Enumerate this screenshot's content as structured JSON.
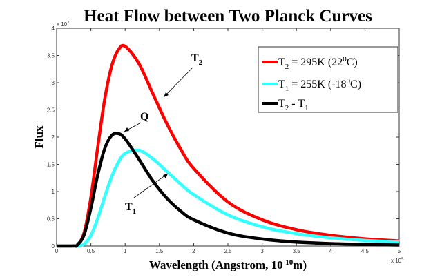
{
  "chart_data": {
    "type": "line",
    "title": "Heat Flow between Two Planck Curves",
    "xlabel": "Wavelength (Angstrom, 10",
    "xlabel_sup": "-10",
    "xlabel_end": "m)",
    "ylabel": "Flux",
    "x_multiplier": "x 10",
    "x_multiplier_exp": "5",
    "y_multiplier": "x 10",
    "y_multiplier_exp": "7",
    "xlim": [
      0,
      5
    ],
    "ylim": [
      0,
      4
    ],
    "xticks": [
      "0",
      "0.5",
      "1",
      "1.5",
      "2",
      "2.5",
      "3",
      "3.5",
      "4",
      "4.5",
      "5"
    ],
    "yticks": [
      "0",
      "0.5",
      "1",
      "1.5",
      "2",
      "2.5",
      "3",
      "3.5",
      "4"
    ],
    "grid": false,
    "legend_placement": "top-right",
    "x": [
      0,
      0.25,
      0.3,
      0.4,
      0.5,
      0.6,
      0.7,
      0.8,
      0.9,
      1.0,
      1.2,
      1.4,
      1.6,
      1.8,
      2.0,
      2.5,
      3.0,
      3.5,
      4.0,
      4.5,
      5.0
    ],
    "series": [
      {
        "name": "T2 = 295K (22 0C)",
        "color": "#ff0000",
        "legend": {
          "main": "T",
          "sub": "2",
          "mid": " = 295K (22",
          "sup": "0",
          "end": "C)"
        },
        "values": [
          0,
          0.0017,
          0.0171,
          0.237,
          0.888,
          1.813,
          2.68,
          3.288,
          3.601,
          3.668,
          3.355,
          2.81,
          2.27,
          1.803,
          1.427,
          0.81,
          0.481,
          0.3,
          0.196,
          0.132,
          0.093
        ]
      },
      {
        "name": "T1 = 255K (-18 0C)",
        "color": "#33ffff",
        "legend": {
          "main": "T",
          "sub": "1",
          "mid": " = 255K (-18",
          "sup": "0",
          "end": "C)"
        },
        "values": [
          0,
          0.0001,
          0.0013,
          0.035,
          0.193,
          0.506,
          0.898,
          1.262,
          1.535,
          1.7,
          1.758,
          1.607,
          1.381,
          1.151,
          0.945,
          0.572,
          0.353,
          0.227,
          0.151,
          0.103,
          0.073
        ]
      },
      {
        "name": "T2 - T1",
        "color": "#000000",
        "legend": {
          "main": "T",
          "sub": "2",
          "mid": " - T",
          "sup": "",
          "end": "",
          "sub2": "1"
        },
        "values": [
          0,
          0.0016,
          0.0158,
          0.202,
          0.695,
          1.307,
          1.782,
          2.026,
          2.066,
          1.968,
          1.597,
          1.203,
          0.889,
          0.652,
          0.482,
          0.238,
          0.128,
          0.073,
          0.045,
          0.029,
          0.019
        ]
      }
    ],
    "annotations": [
      {
        "text": "T",
        "sub": "2"
      },
      {
        "text": "Q"
      },
      {
        "text": "T",
        "sub": "1"
      }
    ]
  }
}
